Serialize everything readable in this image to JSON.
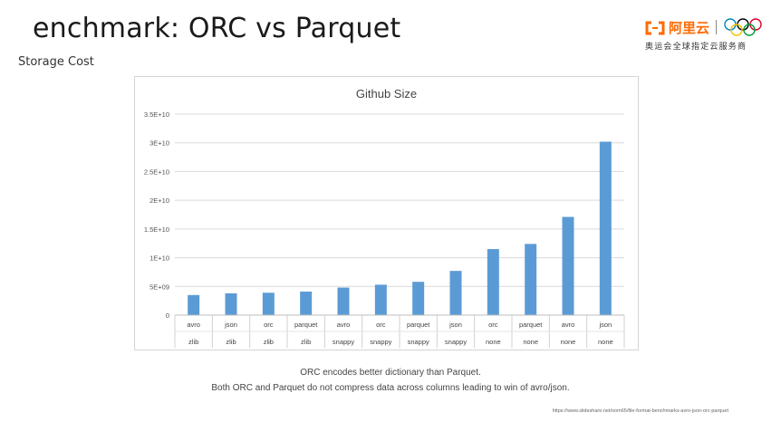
{
  "slide": {
    "title": "enchmark: ORC vs Parquet",
    "section": "Storage Cost",
    "captions": [
      "ORC encodes better dictionary than Parquet.",
      "Both ORC and Parquet do not compress data across columns leading to win of avro/json."
    ],
    "source": "https://www.slideshare.net/oom65/file-format-benchmarks-avro-json-orc-parquet"
  },
  "logo": {
    "brand": "阿里云",
    "tagline": "奥运会全球指定云服务商",
    "colors": {
      "brand": "#ff6a00",
      "rings": [
        "#0085c7",
        "#f4c300",
        "#000000",
        "#009f3d",
        "#df0024"
      ]
    }
  },
  "chart_data": {
    "type": "bar",
    "title": "Github Size",
    "categories": [
      [
        "avro",
        "zlib"
      ],
      [
        "json",
        "zlib"
      ],
      [
        "orc",
        "zlib"
      ],
      [
        "parquet",
        "zlib"
      ],
      [
        "avro",
        "snappy"
      ],
      [
        "orc",
        "snappy"
      ],
      [
        "parquet",
        "snappy"
      ],
      [
        "json",
        "snappy"
      ],
      [
        "orc",
        "none"
      ],
      [
        "parquet",
        "none"
      ],
      [
        "avro",
        "none"
      ],
      [
        "json",
        "none"
      ]
    ],
    "values": [
      3500000000.0,
      3800000000.0,
      3900000000.0,
      4100000000.0,
      4800000000.0,
      5300000000.0,
      5800000000.0,
      7700000000.0,
      11500000000.0,
      12400000000.0,
      17100000000.0,
      30200000000.0
    ],
    "yticks": [
      "0",
      "5E+09",
      "1E+10",
      "1.5E+10",
      "2E+10",
      "2.5E+10",
      "3E+10",
      "3.5E+10"
    ],
    "ylim": [
      0,
      35000000000.0
    ],
    "grid": true,
    "bar_color": "#5b9bd5"
  }
}
